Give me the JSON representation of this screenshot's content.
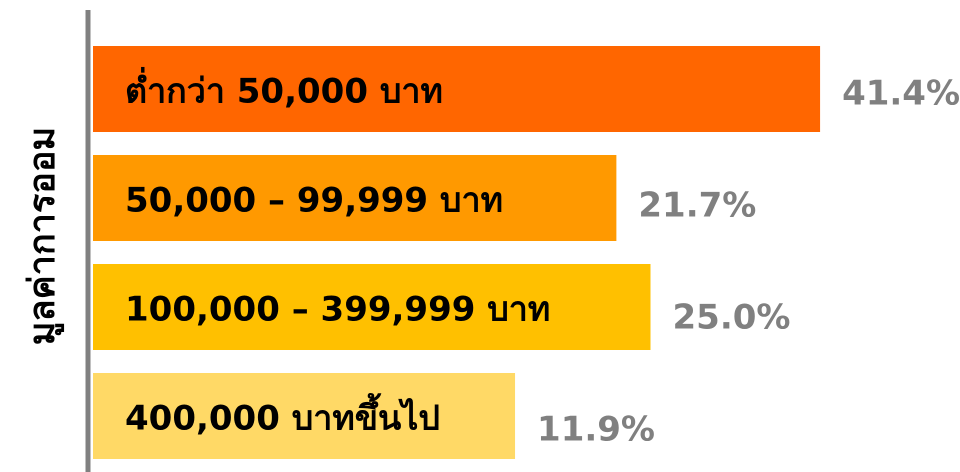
{
  "chart_data": {
    "type": "bar",
    "orientation": "horizontal",
    "y_label": "มูลค่าการออม",
    "categories": [
      "ต่ำกว่า 50,000 บาท",
      "50,000 – 99,999 บาท",
      "100,000 – 399,999 บาท",
      "400,000 บาทขึ้นไป"
    ],
    "values": [
      41.4,
      21.7,
      25.0,
      11.9
    ],
    "value_labels": [
      "41.4%",
      "21.7%",
      "25.0%",
      "11.9%"
    ],
    "colors": [
      "#ff6600",
      "#ff9900",
      "#ffc000",
      "#ffd966"
    ]
  }
}
